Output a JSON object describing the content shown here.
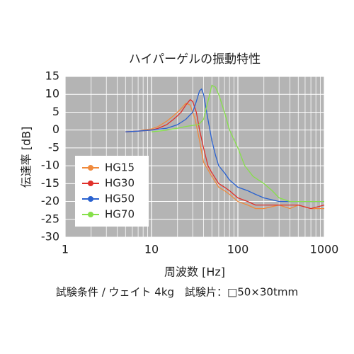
{
  "chart_data": {
    "type": "line",
    "title": "ハイパーゲルの振動特性",
    "xlabel": "周波数 [Hz]",
    "ylabel": "伝達率 [dB]",
    "note": "試験条件 / ウェイト 4kg　試験片：□50×30tmm",
    "xscale": "log",
    "xlim": [
      1,
      1000
    ],
    "xticks": [
      1,
      10,
      100,
      1000
    ],
    "x_minor_ticks": [
      2,
      3,
      4,
      5,
      6,
      7,
      8,
      9,
      20,
      30,
      40,
      50,
      60,
      70,
      80,
      90,
      200,
      300,
      400,
      500,
      600,
      700,
      800,
      900
    ],
    "ylim": [
      -30,
      15
    ],
    "yticks": [
      -30,
      -25,
      -20,
      -15,
      -10,
      -5,
      0,
      5,
      10,
      15
    ],
    "grid": true,
    "legend": "left",
    "series": [
      {
        "name": "HG15",
        "color": "#f08a3c",
        "x": [
          5,
          6,
          7,
          8,
          10,
          12,
          15,
          18,
          20,
          22,
          25,
          28,
          32,
          36,
          40,
          50,
          60,
          70,
          80,
          100,
          130,
          160,
          200,
          300,
          400,
          500,
          700,
          1000
        ],
        "values": [
          -0.5,
          -0.4,
          -0.3,
          0,
          0.3,
          1,
          2.5,
          4,
          5,
          6,
          7.5,
          7,
          3,
          -3,
          -9,
          -13,
          -16,
          -17,
          -18,
          -20,
          -21,
          -22,
          -22,
          -21,
          -22,
          -21,
          -22,
          -22
        ]
      },
      {
        "name": "HG30",
        "color": "#e0302a",
        "x": [
          5,
          6,
          8,
          10,
          12,
          15,
          18,
          20,
          22,
          25,
          28,
          30,
          33,
          36,
          40,
          45,
          50,
          60,
          70,
          80,
          100,
          130,
          160,
          200,
          300,
          500,
          700,
          1000
        ],
        "values": [
          -0.5,
          -0.4,
          -0.2,
          0,
          0.5,
          1.5,
          3,
          4,
          5,
          7,
          8.5,
          8,
          5,
          0,
          -5,
          -10,
          -12,
          -15,
          -16,
          -17,
          -19,
          -20,
          -21,
          -21,
          -21,
          -21,
          -22,
          -21
        ]
      },
      {
        "name": "HG50",
        "color": "#2a62d0",
        "x": [
          5,
          7,
          10,
          15,
          20,
          25,
          30,
          33,
          36,
          38,
          40,
          45,
          50,
          55,
          60,
          70,
          80,
          100,
          130,
          160,
          200,
          300,
          500,
          700,
          1000
        ],
        "values": [
          -0.5,
          -0.3,
          0,
          0.5,
          1.5,
          3,
          5,
          8,
          11,
          11.5,
          10,
          3,
          -3,
          -7,
          -10,
          -12,
          -14,
          -16,
          -17,
          -18,
          -19,
          -20,
          -20,
          -20,
          -20
        ]
      },
      {
        "name": "HG70",
        "color": "#86e04a",
        "x": [
          10,
          12,
          15,
          20,
          25,
          30,
          35,
          40,
          45,
          50,
          55,
          60,
          70,
          80,
          100,
          120,
          150,
          200,
          250,
          300,
          400,
          500,
          700,
          1000
        ],
        "values": [
          -0.5,
          -0.3,
          0,
          0.5,
          1,
          1.3,
          1.5,
          3,
          8,
          12.5,
          12,
          10,
          5,
          0,
          -5,
          -10,
          -13,
          -15,
          -17,
          -19,
          -20,
          -20,
          -20,
          -20
        ]
      }
    ]
  }
}
